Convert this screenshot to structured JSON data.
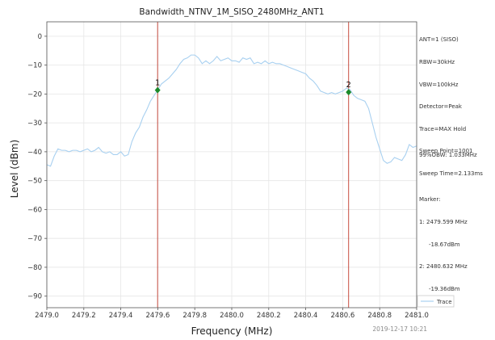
{
  "chart_data": {
    "type": "line",
    "title": "Bandwidth_NTNV_1M_SISO_2480MHz_ANT1",
    "xlabel": "Frequency (MHz)",
    "ylabel": "Level (dBm)",
    "xlim": [
      2479.0,
      2481.0
    ],
    "ylim": [
      -94,
      5
    ],
    "xticks": [
      2479.0,
      2479.2,
      2479.4,
      2479.6,
      2479.8,
      2480.0,
      2480.2,
      2480.4,
      2480.6,
      2480.8,
      2481.0
    ],
    "xtick_labels": [
      "2479.0",
      "2479.2",
      "2479.4",
      "2479.6",
      "2479.8",
      "2480.0",
      "2480.2",
      "2480.4",
      "2480.6",
      "2480.8",
      "2481.0"
    ],
    "yticks": [
      0,
      -10,
      -20,
      -30,
      -40,
      -50,
      -60,
      -70,
      -80,
      -90
    ],
    "ytick_labels": [
      "0",
      "−10",
      "−20",
      "−30",
      "−40",
      "−50",
      "−60",
      "−70",
      "−80",
      "−90"
    ],
    "grid": true,
    "legend": {
      "position": "bottom-right",
      "entries": [
        "Trace"
      ]
    },
    "series": [
      {
        "name": "Trace",
        "color": "#a8d0f0",
        "x": [
          2479.0,
          2479.02,
          2479.04,
          2479.06,
          2479.08,
          2479.1,
          2479.12,
          2479.14,
          2479.16,
          2479.18,
          2479.2,
          2479.22,
          2479.24,
          2479.26,
          2479.28,
          2479.3,
          2479.32,
          2479.34,
          2479.36,
          2479.38,
          2479.4,
          2479.42,
          2479.44,
          2479.46,
          2479.48,
          2479.5,
          2479.52,
          2479.54,
          2479.56,
          2479.58,
          2479.6,
          2479.62,
          2479.64,
          2479.66,
          2479.68,
          2479.7,
          2479.72,
          2479.74,
          2479.76,
          2479.78,
          2479.8,
          2479.82,
          2479.84,
          2479.86,
          2479.88,
          2479.9,
          2479.92,
          2479.94,
          2479.96,
          2479.98,
          2480.0,
          2480.02,
          2480.04,
          2480.06,
          2480.08,
          2480.1,
          2480.12,
          2480.14,
          2480.16,
          2480.18,
          2480.2,
          2480.22,
          2480.24,
          2480.26,
          2480.28,
          2480.3,
          2480.32,
          2480.34,
          2480.36,
          2480.38,
          2480.4,
          2480.42,
          2480.44,
          2480.46,
          2480.48,
          2480.5,
          2480.52,
          2480.54,
          2480.56,
          2480.58,
          2480.6,
          2480.62,
          2480.64,
          2480.66,
          2480.68,
          2480.7,
          2480.72,
          2480.74,
          2480.76,
          2480.78,
          2480.8,
          2480.82,
          2480.84,
          2480.86,
          2480.88,
          2480.9,
          2480.92,
          2480.94,
          2480.96,
          2480.98,
          2481.0
        ],
        "y": [
          -44.5,
          -45.0,
          -41.5,
          -39.0,
          -39.5,
          -39.5,
          -40.0,
          -39.5,
          -39.5,
          -40.0,
          -39.5,
          -39.0,
          -40.0,
          -39.5,
          -38.5,
          -40.0,
          -40.5,
          -40.0,
          -41.0,
          -41.0,
          -40.0,
          -41.5,
          -41.0,
          -36.5,
          -33.5,
          -31.5,
          -28.0,
          -25.5,
          -22.5,
          -20.5,
          -18.5,
          -16.5,
          -15.5,
          -14.5,
          -13.0,
          -11.5,
          -9.5,
          -8.0,
          -7.5,
          -6.5,
          -6.5,
          -7.5,
          -9.5,
          -8.5,
          -9.5,
          -8.5,
          -7.0,
          -8.5,
          -8.0,
          -7.5,
          -8.5,
          -8.5,
          -9.0,
          -7.5,
          -8.0,
          -7.5,
          -9.5,
          -9.0,
          -9.5,
          -8.5,
          -9.5,
          -9.0,
          -9.5,
          -9.5,
          -10.0,
          -10.5,
          -11.0,
          -11.5,
          -12.0,
          -12.5,
          -13.0,
          -14.5,
          -15.5,
          -17.0,
          -19.0,
          -19.5,
          -20.0,
          -19.5,
          -20.0,
          -19.5,
          -19.0,
          -18.0,
          -18.5,
          -20.5,
          -21.5,
          -22.0,
          -22.5,
          -25.0,
          -30.0,
          -35.0,
          -39.0,
          -43.0,
          -44.0,
          -43.5,
          -42.0,
          -42.5,
          -43.0,
          -41.0,
          -37.5,
          -38.5,
          -38.0
        ]
      }
    ],
    "vlines": [
      {
        "x": 2479.599,
        "color": "#c0392b"
      },
      {
        "x": 2480.632,
        "color": "#c0392b"
      }
    ],
    "markers": [
      {
        "label": "1",
        "x": 2479.599,
        "y": -18.67,
        "color": "#1b8a2a"
      },
      {
        "label": "2",
        "x": 2480.632,
        "y": -19.36,
        "color": "#1b8a2a"
      }
    ]
  },
  "info_box": {
    "lines": [
      "ANT=1 (SISO)",
      "RBW=30kHz",
      "VBW=100kHz",
      "Detector=Peak",
      "Trace=MAX Hold",
      "Sweep Point=1001",
      "Sweep Time=2.133ms"
    ]
  },
  "obw_box": {
    "obw": "99%OBW: 1.033MHz",
    "marker_title": "Marker:",
    "marker1_freq": "1: 2479.599 MHz",
    "marker1_level": "-18.67dBm",
    "marker2_freq": "2: 2480.632 MHz",
    "marker2_level": "-19.36dBm"
  },
  "timestamp": "2019-12-17 10:21"
}
